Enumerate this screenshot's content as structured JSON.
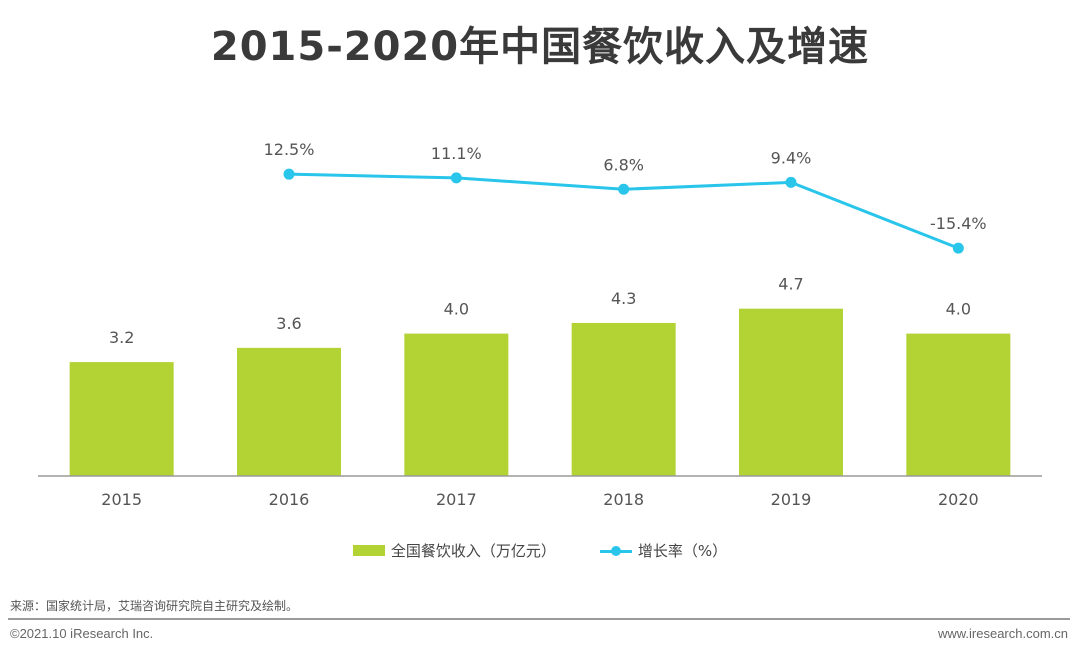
{
  "chart_data": {
    "type": "bar+line",
    "title": "2015-2020年中国餐饮收入及增速",
    "categories": [
      "2015",
      "2016",
      "2017",
      "2018",
      "2019",
      "2020"
    ],
    "series": [
      {
        "name": "全国餐饮收入（万亿元）",
        "type": "bar",
        "color": "#b3d234",
        "values": [
          3.2,
          3.6,
          4.0,
          4.3,
          4.7,
          4.0
        ],
        "labels": [
          "3.2",
          "3.6",
          "4.0",
          "4.3",
          "4.7",
          "4.0"
        ]
      },
      {
        "name": "增长率（%）",
        "type": "line",
        "color": "#29c5ea",
        "values": [
          null,
          12.5,
          11.1,
          6.8,
          9.4,
          -15.4
        ],
        "labels": [
          "",
          "12.5%",
          "11.1%",
          "6.8%",
          "9.4%",
          "-15.4%"
        ]
      }
    ],
    "xlabel": "",
    "ylabel": "",
    "grid": false,
    "legend": "bottom"
  },
  "legend": {
    "bar_label": "全国餐饮收入（万亿元）",
    "line_label": "增长率（%）"
  },
  "footer": {
    "source": "来源：国家统计局，艾瑞咨询研究院自主研究及绘制。",
    "copyright": "©2021.10 iResearch Inc.",
    "website": "www.iresearch.com.cn"
  }
}
